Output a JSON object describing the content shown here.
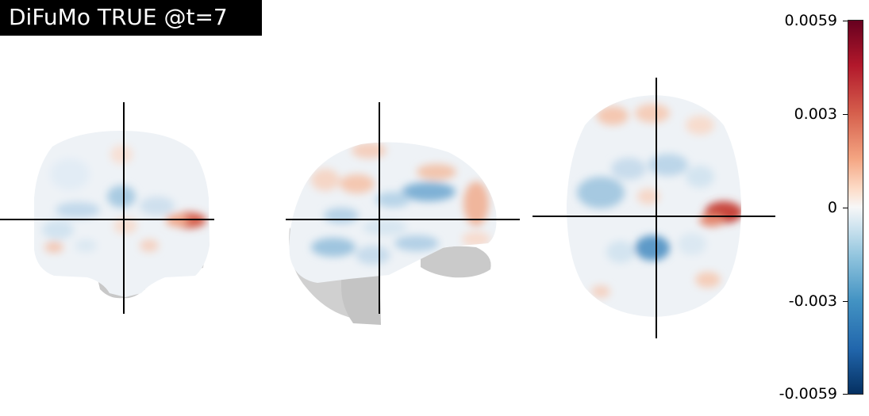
{
  "title": "DiFuMo TRUE @t=7",
  "views": [
    {
      "name": "coronal"
    },
    {
      "name": "sagittal"
    },
    {
      "name": "axial"
    }
  ],
  "colorbar": {
    "colormap": "RdBu_r",
    "max_color": "#67001f",
    "min_color": "#053061",
    "ticks": [
      "0.0059",
      "0.003",
      "0",
      "-0.003",
      "-0.0059"
    ]
  }
}
